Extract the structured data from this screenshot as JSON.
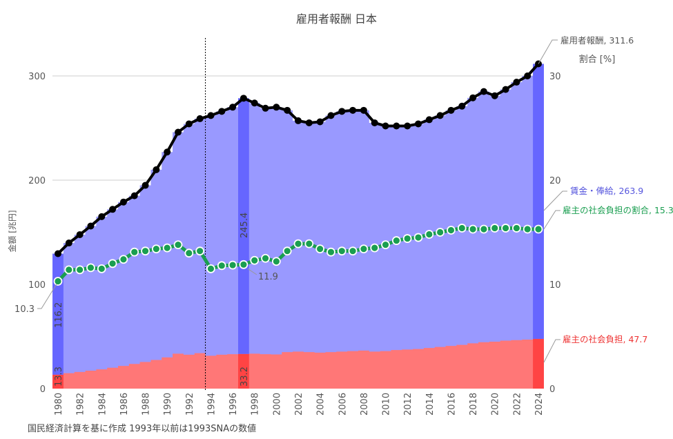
{
  "chart_data": {
    "type": "area",
    "title": "雇用者報酬 日本",
    "ylabel": "金額 [兆円]",
    "y2label": "割合 [%]",
    "ylim": [
      0,
      330
    ],
    "y2lim": [
      0,
      33
    ],
    "yticks": [
      0,
      100,
      200,
      300
    ],
    "y2ticks": [
      0,
      10,
      20,
      30
    ],
    "x": [
      1980,
      1981,
      1982,
      1983,
      1984,
      1985,
      1986,
      1987,
      1988,
      1989,
      1990,
      1991,
      1992,
      1993,
      1994,
      1995,
      1996,
      1997,
      1998,
      1999,
      2000,
      2001,
      2002,
      2003,
      2004,
      2005,
      2006,
      2007,
      2008,
      2009,
      2010,
      2011,
      2012,
      2013,
      2014,
      2015,
      2016,
      2017,
      2018,
      2019,
      2020,
      2021,
      2022,
      2023,
      2024
    ],
    "xticks": [
      1980,
      1982,
      1984,
      1986,
      1988,
      1990,
      1992,
      1994,
      1996,
      1998,
      2000,
      2002,
      2004,
      2006,
      2008,
      2010,
      2012,
      2014,
      2016,
      2018,
      2020,
      2022,
      2024
    ],
    "series": [
      {
        "name": "雇用者報酬",
        "color": "#000000",
        "values": [
          129.5,
          139.7,
          147.7,
          156,
          165,
          172,
          179,
          185,
          195,
          210,
          227,
          246,
          254,
          259,
          262,
          266,
          270,
          278.6,
          274,
          269,
          270,
          267,
          257,
          255,
          256,
          262,
          266,
          267,
          267,
          255,
          252,
          252,
          252,
          254,
          258,
          262,
          267,
          271,
          279,
          285,
          281,
          287,
          294,
          300,
          311.6
        ]
      },
      {
        "name": "雇主の社会負担",
        "color": "#ff7777",
        "values": [
          13.3,
          14.8,
          16,
          17.2,
          18.5,
          20,
          21.8,
          23.7,
          25.6,
          27.5,
          30,
          33.5,
          32.5,
          34,
          31.5,
          32.5,
          33,
          33.2,
          33.5,
          33,
          32.8,
          35,
          35.5,
          35,
          34.5,
          35,
          35.5,
          36,
          36.5,
          35.5,
          36,
          37,
          37.5,
          38,
          39,
          40,
          41,
          42,
          43.5,
          44.5,
          45,
          46,
          46.5,
          47,
          47.7
        ]
      },
      {
        "name": "雇主の社会負担の割合",
        "color": "#1a9e50",
        "axis": "right",
        "values": [
          10.3,
          11.4,
          11.4,
          11.6,
          11.5,
          12.0,
          12.4,
          13.1,
          13.2,
          13.4,
          13.5,
          13.8,
          13.0,
          13.2,
          11.5,
          11.8,
          11.85,
          11.9,
          12.3,
          12.5,
          12.2,
          13.2,
          13.9,
          13.9,
          13.4,
          13.1,
          13.2,
          13.2,
          13.4,
          13.5,
          13.8,
          14.2,
          14.4,
          14.5,
          14.8,
          15.0,
          15.2,
          15.4,
          15.3,
          15.3,
          15.4,
          15.4,
          15.4,
          15.3,
          15.3
        ]
      }
    ],
    "highlight_years": [
      1980,
      1997,
      2024
    ],
    "divider_year": 1993.5,
    "annotations": {
      "total_end": "雇用者報酬, 311.6",
      "wages_end": "賃金・俸給, 263.9",
      "ratio_end": "雇主の社会負担の割合, 15.3",
      "burden_end": "雇主の社会負担, 47.7",
      "ratio_start": "10.3",
      "ratio_1997": "11.9",
      "wages_1980": "116.2",
      "burden_1980": "13.3",
      "wages_1997": "245.4",
      "burden_1997": "33.2"
    },
    "footnote": "国民経済計算を基に作成 1993年以前は1993SNAの数値",
    "colors": {
      "wages": "#9999ff",
      "wages_hl": "#6666ff",
      "burden": "#ff7777",
      "burden_hl": "#ff4444",
      "ratio": "#1a9e50",
      "wages_text": "#5555dd",
      "burden_text": "#ee3333"
    }
  }
}
